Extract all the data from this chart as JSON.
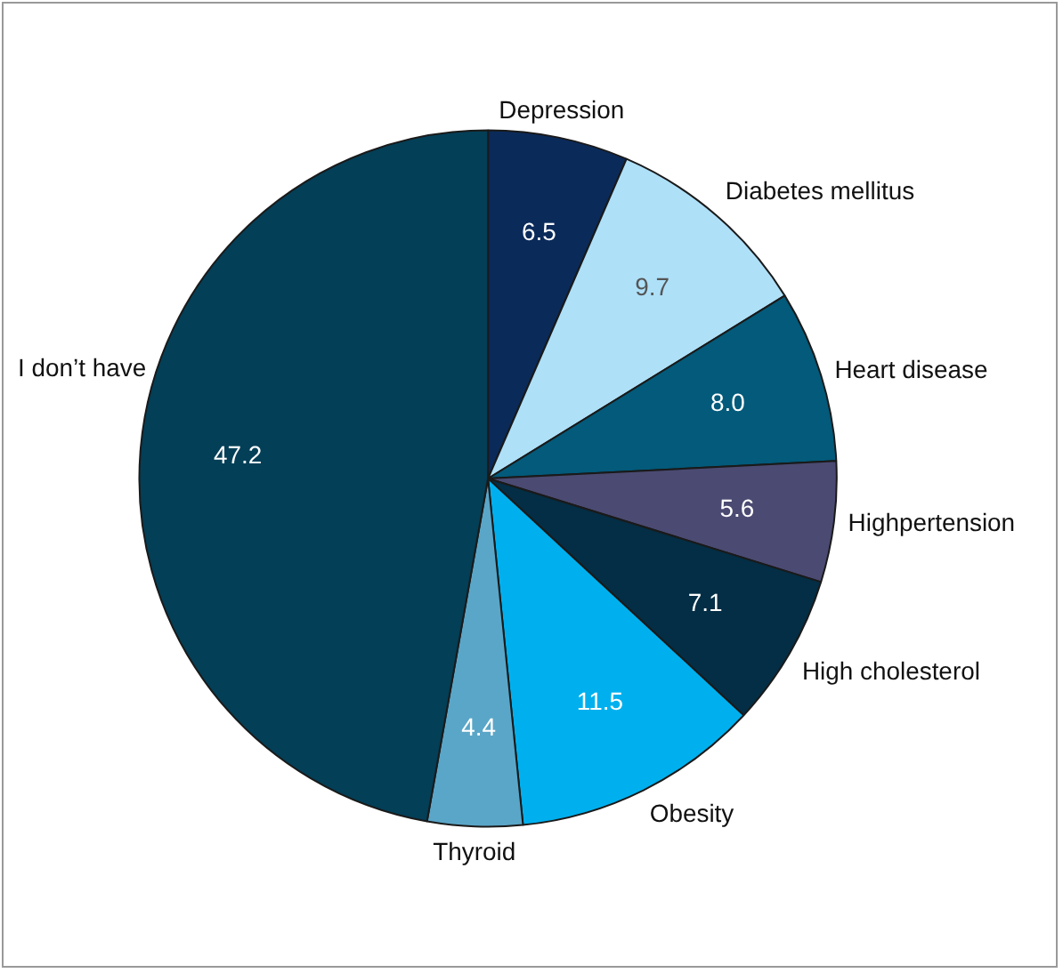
{
  "chart_data": {
    "type": "pie",
    "categories": [
      "Depression",
      "Diabetes mellitus",
      "Heart disease",
      "Highpertension",
      "High cholesterol",
      "Obesity",
      "Thyroid",
      "I don’t have"
    ],
    "values": [
      6.5,
      9.7,
      8.0,
      5.6,
      7.1,
      11.5,
      4.4,
      47.2
    ],
    "value_labels": [
      "6.5",
      "9.7",
      "8.0",
      "5.6",
      "7.1",
      "11.5",
      "4.4",
      "47.2"
    ],
    "colors": [
      "#0a2a5a",
      "#aee0f8",
      "#035a7a",
      "#4a4a72",
      "#032e45",
      "#00b0ee",
      "#5aa6c8",
      "#033f57"
    ],
    "legend": false
  }
}
